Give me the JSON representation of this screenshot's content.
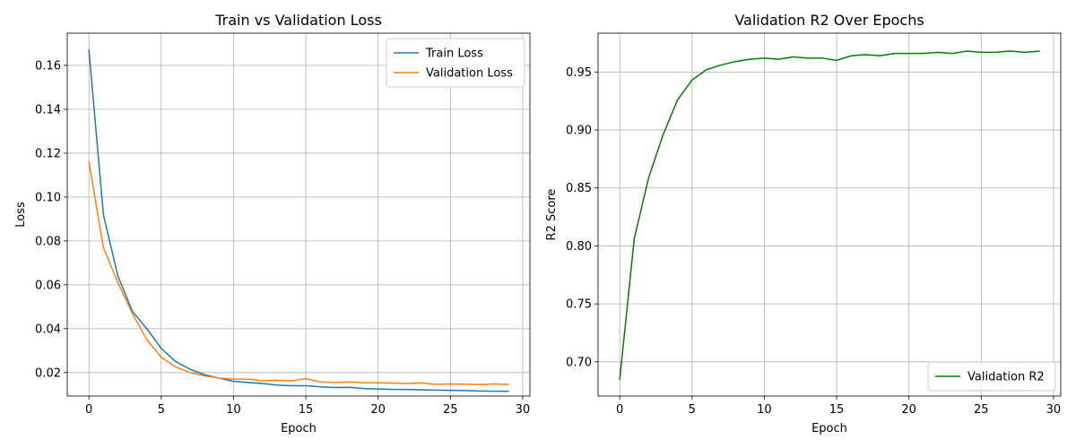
{
  "chart_data": [
    {
      "type": "line",
      "title": "Train vs Validation Loss",
      "xlabel": "Epoch",
      "ylabel": "Loss",
      "xlim": [
        -1.5,
        30.5
      ],
      "ylim": [
        0.0093,
        0.1747
      ],
      "xticks": [
        0,
        5,
        10,
        15,
        20,
        25,
        30
      ],
      "yticks": [
        0.02,
        0.04,
        0.06,
        0.08,
        0.1,
        0.12,
        0.14,
        0.16
      ],
      "ytick_labels": [
        "0.02",
        "0.04",
        "0.06",
        "0.08",
        "0.10",
        "0.12",
        "0.14",
        "0.16"
      ],
      "grid": true,
      "legend": "top-right",
      "x": [
        0,
        1,
        2,
        3,
        4,
        5,
        6,
        7,
        8,
        9,
        10,
        11,
        12,
        13,
        14,
        15,
        16,
        17,
        18,
        19,
        20,
        21,
        22,
        23,
        24,
        25,
        26,
        27,
        28,
        29
      ],
      "series": [
        {
          "name": "Train Loss",
          "color": "#1f77b4",
          "values": [
            0.167,
            0.092,
            0.064,
            0.048,
            0.04,
            0.031,
            0.025,
            0.0215,
            0.019,
            0.0175,
            0.016,
            0.0155,
            0.015,
            0.0143,
            0.014,
            0.014,
            0.0135,
            0.0132,
            0.0133,
            0.0127,
            0.0125,
            0.0123,
            0.0123,
            0.0121,
            0.012,
            0.0119,
            0.0118,
            0.0116,
            0.0115,
            0.0115
          ]
        },
        {
          "name": "Validation Loss",
          "color": "#ff7f0e",
          "values": [
            0.116,
            0.077,
            0.061,
            0.047,
            0.035,
            0.027,
            0.0225,
            0.02,
            0.0185,
            0.0175,
            0.017,
            0.017,
            0.0163,
            0.0165,
            0.0162,
            0.0172,
            0.0157,
            0.0155,
            0.0157,
            0.0153,
            0.0153,
            0.0152,
            0.015,
            0.0153,
            0.0146,
            0.0148,
            0.0147,
            0.0145,
            0.0148,
            0.0145
          ]
        }
      ]
    },
    {
      "type": "line",
      "title": "Validation R2 Over Epochs",
      "xlabel": "Epoch",
      "ylabel": "R2 Score",
      "xlim": [
        -1.5,
        30.5
      ],
      "ylim": [
        0.6705,
        0.9835
      ],
      "xticks": [
        0,
        5,
        10,
        15,
        20,
        25,
        30
      ],
      "yticks": [
        0.7,
        0.75,
        0.8,
        0.85,
        0.9,
        0.95
      ],
      "ytick_labels": [
        "0.70",
        "0.75",
        "0.80",
        "0.85",
        "0.90",
        "0.95"
      ],
      "grid": true,
      "legend": "bottom-right",
      "x": [
        0,
        1,
        2,
        3,
        4,
        5,
        6,
        7,
        8,
        9,
        10,
        11,
        12,
        13,
        14,
        15,
        16,
        17,
        18,
        19,
        20,
        21,
        22,
        23,
        24,
        25,
        26,
        27,
        28,
        29
      ],
      "series": [
        {
          "name": "Validation R2",
          "color": "#008000",
          "values": [
            0.685,
            0.806,
            0.859,
            0.896,
            0.926,
            0.943,
            0.952,
            0.956,
            0.959,
            0.961,
            0.962,
            0.961,
            0.963,
            0.962,
            0.962,
            0.96,
            0.964,
            0.965,
            0.964,
            0.966,
            0.966,
            0.966,
            0.967,
            0.966,
            0.968,
            0.967,
            0.967,
            0.968,
            0.967,
            0.968
          ]
        }
      ]
    }
  ]
}
